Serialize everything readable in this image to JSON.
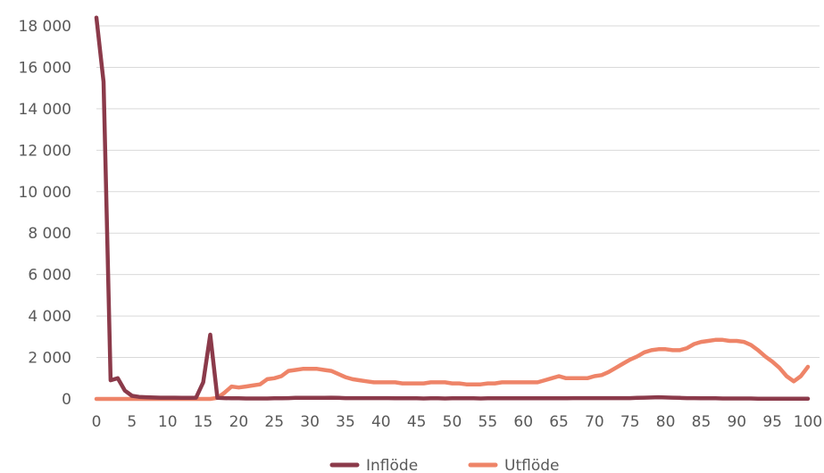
{
  "chart_data": {
    "type": "line",
    "title": "",
    "xlabel": "",
    "ylabel": "",
    "xlim": [
      0,
      100
    ],
    "ylim": [
      0,
      18000
    ],
    "grid": "horizontal",
    "legend_position": "bottom",
    "x": [
      0,
      1,
      2,
      3,
      4,
      5,
      6,
      7,
      8,
      9,
      10,
      11,
      12,
      13,
      14,
      15,
      16,
      17,
      18,
      19,
      20,
      21,
      22,
      23,
      24,
      25,
      26,
      27,
      28,
      29,
      30,
      31,
      32,
      33,
      34,
      35,
      36,
      37,
      38,
      39,
      40,
      41,
      42,
      43,
      44,
      45,
      46,
      47,
      48,
      49,
      50,
      51,
      52,
      53,
      54,
      55,
      56,
      57,
      58,
      59,
      60,
      61,
      62,
      63,
      64,
      65,
      66,
      67,
      68,
      69,
      70,
      71,
      72,
      73,
      74,
      75,
      76,
      77,
      78,
      79,
      80,
      81,
      82,
      83,
      84,
      85,
      86,
      87,
      88,
      89,
      90,
      91,
      92,
      93,
      94,
      95,
      96,
      97,
      98,
      99,
      100
    ],
    "x_ticks": [
      "0",
      "5",
      "10",
      "15",
      "20",
      "25",
      "30",
      "35",
      "40",
      "45",
      "50",
      "55",
      "60",
      "65",
      "70",
      "75",
      "80",
      "85",
      "90",
      "95",
      "100"
    ],
    "y_ticks": [
      "0",
      "2 000",
      "4 000",
      "6 000",
      "8 000",
      "10 000",
      "12 000",
      "14 000",
      "16 000",
      "18 000"
    ],
    "series": [
      {
        "name": "Inflöde",
        "color": "#8b3a4a",
        "values": [
          18400,
          15300,
          900,
          1000,
          400,
          150,
          100,
          80,
          70,
          60,
          60,
          60,
          50,
          50,
          60,
          800,
          3100,
          50,
          40,
          30,
          30,
          20,
          20,
          20,
          20,
          30,
          30,
          40,
          50,
          50,
          50,
          50,
          50,
          60,
          50,
          40,
          40,
          40,
          40,
          40,
          40,
          40,
          30,
          30,
          30,
          30,
          20,
          30,
          30,
          20,
          30,
          30,
          30,
          30,
          20,
          30,
          30,
          30,
          30,
          30,
          30,
          30,
          30,
          30,
          30,
          30,
          30,
          40,
          40,
          40,
          40,
          40,
          40,
          40,
          40,
          40,
          50,
          60,
          70,
          80,
          70,
          60,
          50,
          40,
          40,
          30,
          30,
          30,
          20,
          20,
          20,
          20,
          20,
          10,
          10,
          10,
          10,
          10,
          10,
          10,
          10
        ]
      },
      {
        "name": "Utflöde",
        "color": "#ee8468",
        "values": [
          0,
          0,
          0,
          0,
          0,
          0,
          0,
          0,
          0,
          0,
          0,
          0,
          0,
          0,
          0,
          0,
          0,
          50,
          300,
          600,
          550,
          600,
          650,
          700,
          950,
          1000,
          1100,
          1350,
          1400,
          1450,
          1450,
          1450,
          1400,
          1350,
          1200,
          1050,
          950,
          900,
          850,
          800,
          800,
          800,
          800,
          750,
          750,
          750,
          750,
          800,
          800,
          800,
          750,
          750,
          700,
          700,
          700,
          750,
          750,
          800,
          800,
          800,
          800,
          800,
          800,
          900,
          1000,
          1100,
          1000,
          1000,
          1000,
          1000,
          1100,
          1150,
          1300,
          1500,
          1700,
          1900,
          2050,
          2250,
          2350,
          2400,
          2400,
          2350,
          2350,
          2450,
          2650,
          2750,
          2800,
          2850,
          2850,
          2800,
          2800,
          2750,
          2600,
          2350,
          2050,
          1800,
          1500,
          1100,
          850,
          1100,
          1550
        ]
      }
    ]
  }
}
